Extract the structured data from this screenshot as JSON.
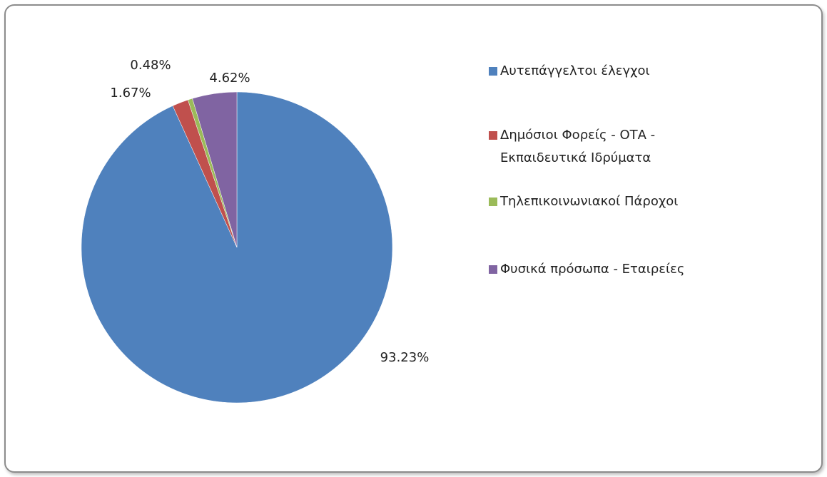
{
  "chart_data": {
    "type": "pie",
    "categories": [
      "Αυτεπάγγελτοι έλεγχοι",
      "Δημόσιοι Φορείς - ΟΤΑ - Εκπαιδευτικά Ιδρύματα",
      "Τηλεπικοινωνιακοί Πάροχοι",
      "Φυσικά πρόσωπα - Εταιρείες"
    ],
    "values": [
      93.23,
      1.67,
      0.48,
      4.62
    ],
    "value_labels": [
      "93.23%",
      "1.67%",
      "0.48%",
      "4.62%"
    ],
    "colors": [
      "#4f81bd",
      "#c0504d",
      "#9bbb59",
      "#8064a2"
    ],
    "legend": "right"
  }
}
